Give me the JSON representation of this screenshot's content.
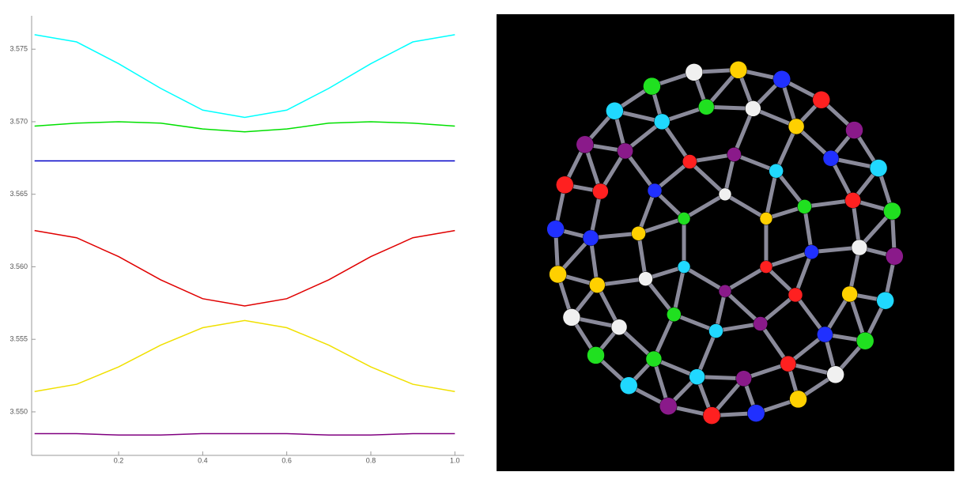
{
  "chart_data": {
    "type": "line",
    "x": [
      0,
      0.1,
      0.2,
      0.3,
      0.4,
      0.5,
      0.6,
      0.7,
      0.8,
      0.9,
      1
    ],
    "series": [
      {
        "color": "#00ffff",
        "values": [
          3.576,
          3.5755,
          3.574,
          3.5723,
          3.5708,
          3.5703,
          3.5708,
          3.5723,
          3.574,
          3.5755,
          3.576
        ]
      },
      {
        "color": "#00e000",
        "values": [
          3.5697,
          3.5699,
          3.57,
          3.5699,
          3.5695,
          3.5693,
          3.5695,
          3.5699,
          3.57,
          3.5699,
          3.5697
        ]
      },
      {
        "color": "#0000c8",
        "values": [
          3.5673,
          3.5673,
          3.5673,
          3.5673,
          3.5673,
          3.5673,
          3.5673,
          3.5673,
          3.5673,
          3.5673,
          3.5673
        ]
      },
      {
        "color": "#e00000",
        "values": [
          3.5625,
          3.562,
          3.5607,
          3.5591,
          3.5578,
          3.5573,
          3.5578,
          3.5591,
          3.5607,
          3.562,
          3.5625
        ]
      },
      {
        "color": "#f0e000",
        "values": [
          3.5514,
          3.5519,
          3.5531,
          3.5546,
          3.5558,
          3.5563,
          3.5558,
          3.5546,
          3.5531,
          3.5519,
          3.5514
        ]
      },
      {
        "color": "#800080",
        "values": [
          3.5485,
          3.5485,
          3.5484,
          3.5484,
          3.5485,
          3.5485,
          3.5485,
          3.5484,
          3.5484,
          3.5485,
          3.5485
        ]
      }
    ],
    "xlim": [
      -0.007,
      1.022
    ],
    "xticks": [
      0.2,
      0.4,
      0.6,
      0.8,
      {
        "value": 1,
        "label": "1.0"
      }
    ],
    "ylim": [
      3.547,
      3.5773
    ],
    "yticks": [
      {
        "value": 3.55,
        "label": "3.550"
      },
      3.555,
      {
        "value": 3.56,
        "label": "3.560"
      },
      3.565,
      {
        "value": 3.57,
        "label": "3.570"
      },
      3.575
    ]
  }
}
